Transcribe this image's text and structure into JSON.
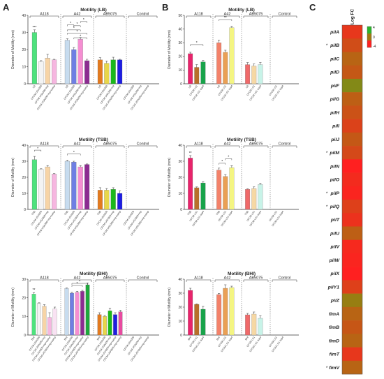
{
  "panels": {
    "A": "A",
    "B": "B",
    "C": "C"
  },
  "chart_data": [
    {
      "type": "bar",
      "panel": "A",
      "title": "Motility (LB)",
      "ylabel": "Diameter of Motility (mm)",
      "ylim": [
        0,
        40
      ],
      "yticks": [
        0,
        10,
        20,
        30,
        40
      ],
      "groups": [
        {
          "name": "A118",
          "bars": [
            {
              "label": "LB",
              "value": 30,
              "err": 1.5,
              "color": "#4ee27d",
              "sig": "***"
            },
            {
              "label": "CFCM USA300",
              "value": 13,
              "err": 0.5,
              "color": "#f3f3f3"
            },
            {
              "label": "CFCM USA300+mp",
              "value": 15,
              "err": 2.2,
              "color": "#f7d4a6"
            },
            {
              "label": "CFCM USA300+mp+camp",
              "value": 14,
              "err": 0.3,
              "color": "#f6b6e0"
            }
          ]
        },
        {
          "name": "A42",
          "bars": [
            {
              "label": "LB",
              "value": 25.5,
              "err": 0.8,
              "color": "#c7dcef"
            },
            {
              "label": "CFCM USA300",
              "value": 20,
              "err": 1.2,
              "color": "#6f7fe3"
            },
            {
              "label": "CFCM USA300+mp",
              "value": 26,
              "err": 1,
              "color": "#f58ed2"
            },
            {
              "label": "CFCM USA300+mp+camp",
              "value": 13.5,
              "err": 0.8,
              "color": "#8c2c91"
            }
          ]
        },
        {
          "name": "AB5075",
          "bars": [
            {
              "label": "LB",
              "value": 14,
              "err": 1.2,
              "color": "#e37a1e"
            },
            {
              "label": "CFCM USA300",
              "value": 12,
              "err": 1.3,
              "color": "#e8d64a"
            },
            {
              "label": "CFCM USA300+mp",
              "value": 14,
              "err": 1.5,
              "color": "#1bb81b"
            },
            {
              "label": "CFCM USA300+mp+camp",
              "value": 14,
              "err": 0.3,
              "color": "#1e1ee0"
            }
          ]
        },
        {
          "name": "Control",
          "bars": [
            {
              "label": "CFCM USA300",
              "value": 0,
              "err": 0,
              "color": "#bbbbbb"
            },
            {
              "label": "CFCM USA300+mp",
              "value": 0,
              "err": 0,
              "color": "#bbbbbb"
            },
            {
              "label": "CFCM USA300+mp+camp",
              "value": 0,
              "err": 0,
              "color": "#bbbbbb"
            }
          ]
        }
      ],
      "annotations": [
        "*",
        "*",
        "*",
        "*",
        "*",
        "*"
      ]
    },
    {
      "type": "bar",
      "panel": "B",
      "title": "Motility (LB)",
      "ylabel": "Diameter of Motility (mm)",
      "ylim": [
        0,
        50
      ],
      "yticks": [
        0,
        10,
        20,
        30,
        40,
        50
      ],
      "groups": [
        {
          "name": "A118",
          "bars": [
            {
              "label": "LB",
              "value": 22,
              "err": 1,
              "color": "#e8246b"
            },
            {
              "label": "CFCM LS1",
              "value": 12,
              "err": 2,
              "color": "#b96f2a"
            },
            {
              "label": "CFCM LS1 sup4",
              "value": 16,
              "err": 1,
              "color": "#18a34a"
            }
          ]
        },
        {
          "name": "A42",
          "bars": [
            {
              "label": "LB",
              "value": 30,
              "err": 2,
              "color": "#f3826a"
            },
            {
              "label": "CFCM LS1",
              "value": 23,
              "err": 1.5,
              "color": "#eaa055"
            },
            {
              "label": "CFCM LS1 sup4",
              "value": 41,
              "err": 1,
              "color": "#f4f582"
            }
          ]
        },
        {
          "name": "AB5075",
          "bars": [
            {
              "label": "LB",
              "value": 14,
              "err": 1.5,
              "color": "#f06a6a"
            },
            {
              "label": "CFCM LS1",
              "value": 13,
              "err": 1.5,
              "color": "#f6d8a4"
            },
            {
              "label": "CFCM LS1 sup4",
              "value": 14,
              "err": 1.5,
              "color": "#c8f3e8"
            }
          ]
        },
        {
          "name": "Control",
          "bars": [
            {
              "label": "CFCM LS1",
              "value": 0,
              "err": 0,
              "color": "#bbbbbb"
            },
            {
              "label": "CFCM LS1 sup4",
              "value": 0,
              "err": 0,
              "color": "#bbbbbb"
            }
          ]
        }
      ],
      "annotations": [
        "*",
        "**"
      ]
    },
    {
      "type": "bar",
      "panel": "A",
      "title": "Motility (TSB)",
      "ylabel": "Diameter of Motility (mm)",
      "ylim": [
        0,
        40
      ],
      "yticks": [
        0,
        10,
        20,
        30,
        40
      ],
      "groups": [
        {
          "name": "A118",
          "bars": [
            {
              "label": "TSB",
              "value": 31,
              "err": 2,
              "color": "#4ee27d"
            },
            {
              "label": "CFCM USA300",
              "value": 25,
              "err": 0.3,
              "color": "#f3f3f3"
            },
            {
              "label": "CFCM USA300+mp",
              "value": 26.5,
              "err": 0.8,
              "color": "#f7d4a6"
            },
            {
              "label": "CFCM USA300+mp+camp",
              "value": 22,
              "err": 0.3,
              "color": "#f6b6e0"
            }
          ]
        },
        {
          "name": "A42",
          "bars": [
            {
              "label": "TSB",
              "value": 30,
              "err": 0.6,
              "color": "#c7dcef"
            },
            {
              "label": "CFCM USA300",
              "value": 29.5,
              "err": 0.5,
              "color": "#6f7fe3"
            },
            {
              "label": "CFCM USA300+mp",
              "value": 26.5,
              "err": 0.8,
              "color": "#f58ed2"
            },
            {
              "label": "CFCM USA300+mp+camp",
              "value": 28,
              "err": 0.3,
              "color": "#8c2c91"
            }
          ]
        },
        {
          "name": "AB5075",
          "bars": [
            {
              "label": "TSB",
              "value": 12,
              "err": 1.5,
              "color": "#e37a1e"
            },
            {
              "label": "CFCM USA300",
              "value": 12,
              "err": 1,
              "color": "#e8d64a"
            },
            {
              "label": "CFCM USA300+mp",
              "value": 12.5,
              "err": 1,
              "color": "#1bb81b"
            },
            {
              "label": "CFCM USA300+mp+camp",
              "value": 10,
              "err": 1.5,
              "color": "#1e1ee0"
            }
          ]
        },
        {
          "name": "Control",
          "bars": [
            {
              "label": "CFCM USA300",
              "value": 0,
              "err": 0,
              "color": "#bbbbbb"
            },
            {
              "label": "CFCM USA300+mp",
              "value": 0,
              "err": 0,
              "color": "#bbbbbb"
            },
            {
              "label": "CFCM USA300+mp+camp",
              "value": 0,
              "err": 0,
              "color": "#bbbbbb"
            }
          ]
        }
      ],
      "annotations": [
        "*",
        "*"
      ]
    },
    {
      "type": "bar",
      "panel": "B",
      "title": "Motility (TSB)",
      "ylabel": "Diameter of Motility (mm)",
      "ylim": [
        0,
        40
      ],
      "yticks": [
        0,
        10,
        20,
        30,
        40
      ],
      "groups": [
        {
          "name": "A118",
          "bars": [
            {
              "label": "TSB",
              "value": 32,
              "err": 1.5,
              "color": "#e8246b",
              "sig": "**"
            },
            {
              "label": "CFCM LS1",
              "value": 13.5,
              "err": 0.5,
              "color": "#b96f2a"
            },
            {
              "label": "CFCM LS1 sup4",
              "value": 16.5,
              "err": 0.8,
              "color": "#18a34a"
            }
          ]
        },
        {
          "name": "A42",
          "bars": [
            {
              "label": "TSB",
              "value": 24.5,
              "err": 1.2,
              "color": "#f3826a"
            },
            {
              "label": "CFCM LS1",
              "value": 20.5,
              "err": 1.2,
              "color": "#eaa055"
            },
            {
              "label": "CFCM LS1 sup4",
              "value": 26,
              "err": 1.2,
              "color": "#f4f582"
            }
          ]
        },
        {
          "name": "AB5075",
          "bars": [
            {
              "label": "TSB",
              "value": 12.5,
              "err": 0.3,
              "color": "#f06a6a"
            },
            {
              "label": "CFCM LS1",
              "value": 13,
              "err": 1,
              "color": "#f6d8a4"
            },
            {
              "label": "CFCM LS1 sup4",
              "value": 15.5,
              "err": 0.8,
              "color": "#c8f3e8"
            }
          ]
        },
        {
          "name": "Control",
          "bars": [
            {
              "label": "CFCM LS1",
              "value": 0,
              "err": 0,
              "color": "#bbbbbb"
            },
            {
              "label": "CFCM LS1 sup4",
              "value": 0,
              "err": 0,
              "color": "#bbbbbb"
            }
          ]
        }
      ],
      "annotations": [
        "*",
        "*"
      ]
    },
    {
      "type": "bar",
      "panel": "A",
      "title": "Motility (BHI)",
      "ylabel": "Diameter of Motility (mm)",
      "ylim": [
        0,
        30
      ],
      "yticks": [
        0,
        10,
        20,
        30
      ],
      "groups": [
        {
          "name": "A118",
          "bars": [
            {
              "label": "BHI",
              "value": 22,
              "err": 0.8,
              "color": "#4ee27d",
              "sig": "**"
            },
            {
              "label": "CFCM USA300",
              "value": 17,
              "err": 0.3,
              "color": "#f3f3f3"
            },
            {
              "label": "CFCM USA300+mp",
              "value": 15.5,
              "err": 0.8,
              "color": "#f7d4a6"
            },
            {
              "label": "CFCM USA300+mp+camp",
              "value": 9.5,
              "err": 2.5,
              "color": "#f6b6e0"
            },
            {
              "label": "CFCM USA300+mp+camp",
              "value": 14,
              "err": 1,
              "color": "#f9e2f3"
            }
          ]
        },
        {
          "name": "A42",
          "bars": [
            {
              "label": "BHI",
              "value": 25,
              "err": 0.3,
              "color": "#c7dcef"
            },
            {
              "label": "CFCM USA300",
              "value": 22.5,
              "err": 0.5,
              "color": "#6f7fe3"
            },
            {
              "label": "CFCM USA300+mp",
              "value": 23,
              "err": 0.5,
              "color": "#f58ed2"
            },
            {
              "label": "CFCM USA300+mp+camp",
              "value": 23.5,
              "err": 0.5,
              "color": "#8c2c91"
            },
            {
              "label": "CFCM USA300+mp+camp",
              "value": 27,
              "err": 1,
              "color": "#1fa83c"
            }
          ]
        },
        {
          "name": "AB5075",
          "bars": [
            {
              "label": "BHI",
              "value": 11,
              "err": 1,
              "color": "#e37a1e"
            },
            {
              "label": "CFCM USA300",
              "value": 10,
              "err": 0.5,
              "color": "#e8d64a"
            },
            {
              "label": "CFCM USA300+mp",
              "value": 13,
              "err": 1.5,
              "color": "#1bb81b"
            },
            {
              "label": "CFCM USA300+mp+camp",
              "value": 11,
              "err": 1,
              "color": "#1e1ee0"
            },
            {
              "label": "CFCM USA300+mp+camp",
              "value": 12.5,
              "err": 0.8,
              "color": "#e84aa0"
            }
          ]
        },
        {
          "name": "Control",
          "bars": [
            {
              "label": "CFCM USA300",
              "value": 0,
              "err": 0,
              "color": "#bbbbbb"
            },
            {
              "label": "CFCM USA300+mp",
              "value": 0,
              "err": 0,
              "color": "#bbbbbb"
            },
            {
              "label": "CFCM USA300+mp+camp",
              "value": 0,
              "err": 0,
              "color": "#bbbbbb"
            }
          ]
        }
      ],
      "annotations": [
        "*",
        "*"
      ]
    },
    {
      "type": "bar",
      "panel": "B",
      "title": "Motility (BHI)",
      "ylabel": "Diameter of Motility (mm)",
      "ylim": [
        0,
        40
      ],
      "yticks": [
        0,
        10,
        20,
        30,
        40
      ],
      "groups": [
        {
          "name": "A118",
          "bars": [
            {
              "label": "BHI",
              "value": 32,
              "err": 1.5,
              "color": "#e8246b"
            },
            {
              "label": "CFCM LS1",
              "value": 22,
              "err": 0.3,
              "color": "#b96f2a"
            },
            {
              "label": "CFCM LS1 sup4",
              "value": 18.5,
              "err": 2,
              "color": "#18a34a"
            }
          ]
        },
        {
          "name": "A42",
          "bars": [
            {
              "label": "BHI",
              "value": 29,
              "err": 0.8,
              "color": "#f3826a"
            },
            {
              "label": "CFCM LS1",
              "value": 33.5,
              "err": 2.5,
              "color": "#eaa055"
            },
            {
              "label": "CFCM LS1 sup4",
              "value": 34,
              "err": 1,
              "color": "#f4f582"
            }
          ]
        },
        {
          "name": "AB5075",
          "bars": [
            {
              "label": "BHI",
              "value": 14.5,
              "err": 1,
              "color": "#f06a6a"
            },
            {
              "label": "CFCM LS1",
              "value": 15,
              "err": 1.5,
              "color": "#f6d8a4"
            },
            {
              "label": "CFCM LS1 sup4",
              "value": 12,
              "err": 1.8,
              "color": "#c8f3e8"
            }
          ]
        },
        {
          "name": "Control",
          "bars": [
            {
              "label": "CFCM LS1",
              "value": 0,
              "err": 0,
              "color": "#bbbbbb"
            },
            {
              "label": "CFCM LS1 sup4",
              "value": 0,
              "err": 0,
              "color": "#bbbbbb"
            }
          ]
        }
      ],
      "annotations": []
    },
    {
      "type": "heatmap",
      "panel": "C",
      "title": "Log FC",
      "legend_ticks": [
        "4",
        "0",
        "-4"
      ],
      "colorscale": [
        "#2bb52b",
        "#a07a10",
        "#ff2020"
      ],
      "rows": [
        {
          "gene": "pilA",
          "sig": "",
          "value": -3.0
        },
        {
          "gene": "pilB",
          "sig": "*",
          "value": -2.0
        },
        {
          "gene": "pilC",
          "sig": "",
          "value": -1.0
        },
        {
          "gene": "pilD",
          "sig": "",
          "value": -1.5
        },
        {
          "gene": "pilF",
          "sig": "",
          "value": 1.0
        },
        {
          "gene": "pilG",
          "sig": "",
          "value": -1.2
        },
        {
          "gene": "pilH",
          "sig": "",
          "value": -1.8
        },
        {
          "gene": "pilI",
          "sig": "",
          "value": -2.5
        },
        {
          "gene": "pilJ",
          "sig": "",
          "value": -1.5
        },
        {
          "gene": "pilM",
          "sig": "*",
          "value": -2.2
        },
        {
          "gene": "pilN",
          "sig": "",
          "value": -4.0
        },
        {
          "gene": "pilO",
          "sig": "",
          "value": -3.5
        },
        {
          "gene": "pilP",
          "sig": "*",
          "value": -3.8
        },
        {
          "gene": "pilQ",
          "sig": "*",
          "value": -2.6
        },
        {
          "gene": "pilT",
          "sig": "",
          "value": -3.2
        },
        {
          "gene": "pilU",
          "sig": "",
          "value": -1.2
        },
        {
          "gene": "pilV",
          "sig": "",
          "value": -3.6
        },
        {
          "gene": "pilW",
          "sig": "",
          "value": -3.8
        },
        {
          "gene": "pilX",
          "sig": "",
          "value": -4.0
        },
        {
          "gene": "pilY1",
          "sig": "",
          "value": -2.6
        },
        {
          "gene": "pilZ",
          "sig": "",
          "value": 0.3
        },
        {
          "gene": "fimA",
          "sig": "",
          "value": -1.0
        },
        {
          "gene": "fimB",
          "sig": "",
          "value": -1.6
        },
        {
          "gene": "fimD",
          "sig": "",
          "value": -1.0
        },
        {
          "gene": "fimT",
          "sig": "",
          "value": -3.0
        },
        {
          "gene": "fimV",
          "sig": "*",
          "value": -1.0
        }
      ]
    }
  ]
}
